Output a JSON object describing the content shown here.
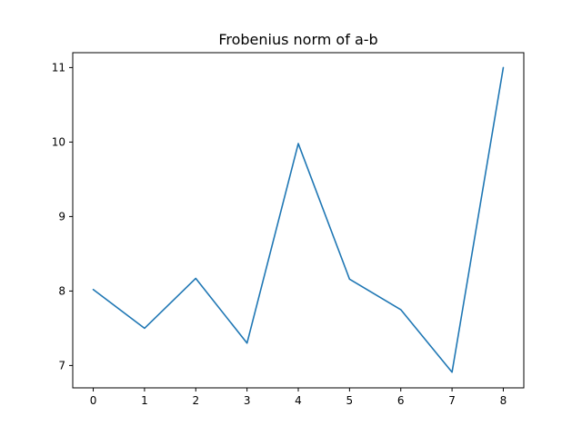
{
  "chart_data": {
    "type": "line",
    "title": "Frobenius norm of a-b",
    "xlabel": "",
    "ylabel": "",
    "x": [
      0,
      1,
      2,
      3,
      4,
      5,
      6,
      7,
      8
    ],
    "series": [
      {
        "values": [
          8.02,
          7.5,
          8.17,
          7.3,
          9.98,
          8.16,
          7.75,
          6.91,
          11.0
        ]
      }
    ],
    "xticks": [
      0,
      1,
      2,
      3,
      4,
      5,
      6,
      7,
      8
    ],
    "yticks": [
      7,
      8,
      9,
      10,
      11
    ],
    "xlim": [
      -0.4,
      8.4
    ],
    "ylim": [
      6.7,
      11.2
    ],
    "grid": false,
    "line_color": "#1f77b4"
  }
}
